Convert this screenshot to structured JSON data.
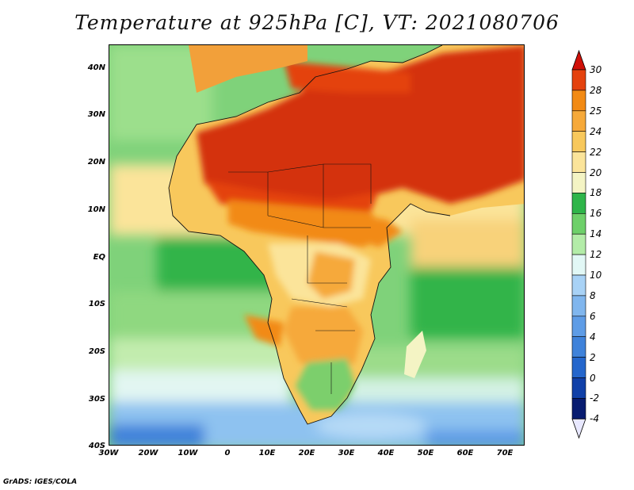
{
  "title": "Temperature at 925hPa [C], VT: 2021080706",
  "credit": "GrADS: IGES/COLA",
  "map": {
    "region": "Africa and Arabian Peninsula",
    "variable": "Temperature at 925hPa",
    "unit": "C",
    "lon_range": [
      -30,
      75
    ],
    "lat_range": [
      -40,
      45
    ],
    "lat_ticks": [
      "40N",
      "30N",
      "20N",
      "10N",
      "EQ",
      "10S",
      "20S",
      "30S",
      "40S"
    ],
    "lon_ticks": [
      "30W",
      "20W",
      "10W",
      "0",
      "10E",
      "20E",
      "30E",
      "40E",
      "50E",
      "60E",
      "70E"
    ]
  },
  "colorbar": {
    "labels": [
      "30",
      "28",
      "25",
      "24",
      "22",
      "20",
      "18",
      "16",
      "14",
      "12",
      "10",
      "8",
      "6",
      "4",
      "2",
      "0",
      "-2",
      "-4"
    ],
    "colors": [
      "#d4300c",
      "#e4420e",
      "#f28a14",
      "#f6a93a",
      "#f8c85c",
      "#fbe49a",
      "#f4f4c4",
      "#2fb54a",
      "#6ed06a",
      "#b3eca8",
      "#e2f8f6",
      "#a8d2f6",
      "#80b6ee",
      "#5e9ce6",
      "#3f82da",
      "#2466cc",
      "#1040a8",
      "#081c70"
    ],
    "top_color": "#d01008",
    "bottom_color": "#e8e8ff"
  }
}
